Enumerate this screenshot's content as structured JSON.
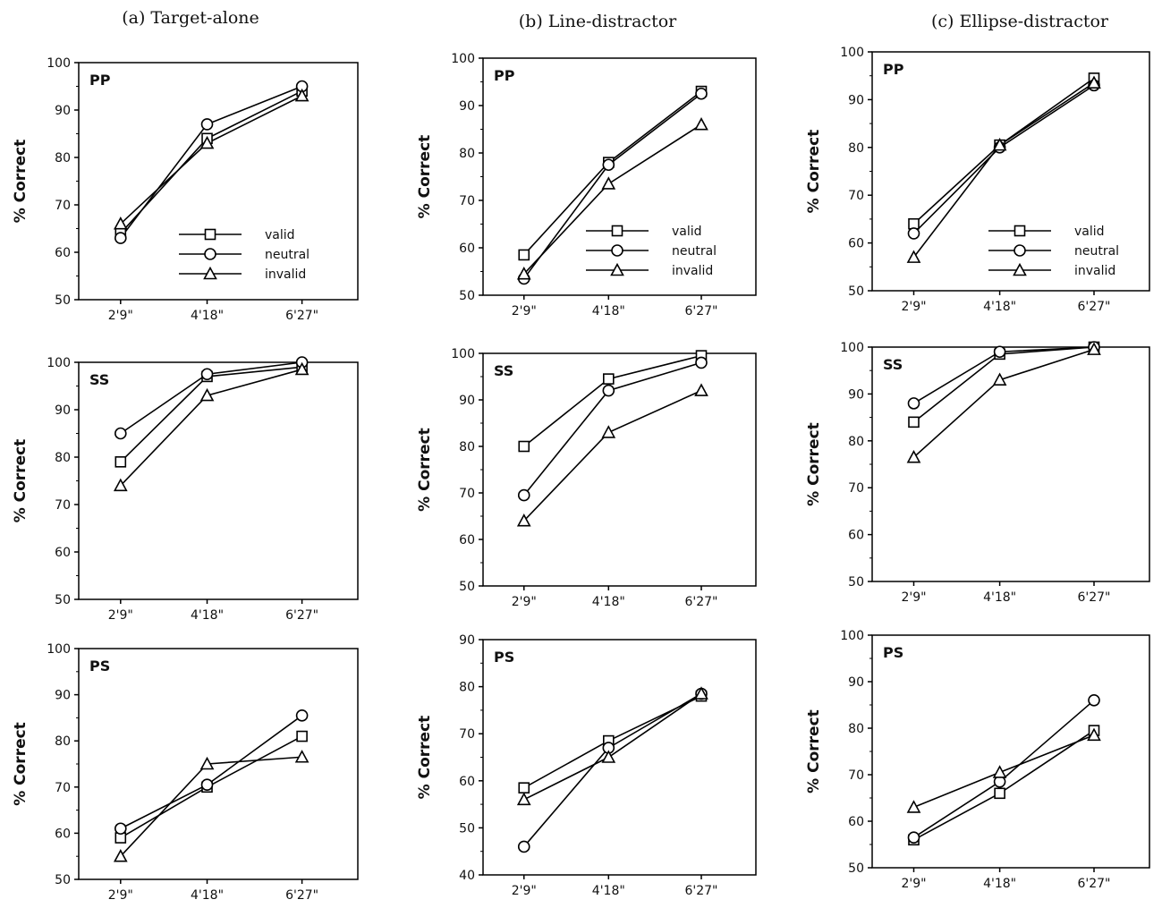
{
  "column_titles": [
    "(a) Target-alone",
    "(b) Line-distractor",
    "(c) Ellipse-distractor"
  ],
  "legend_labels": [
    "valid",
    "neutral",
    "invalid"
  ],
  "chart_data": [
    {
      "type": "line",
      "column": "(a) Target-alone",
      "panel": "PP",
      "ylabel": "% Correct",
      "ylim": [
        50,
        100
      ],
      "yticks": [
        50,
        60,
        70,
        80,
        90,
        100
      ],
      "categories": [
        "2'9\"",
        "4'18\"",
        "6'27\""
      ],
      "legend": true,
      "series": [
        {
          "name": "valid",
          "marker": "square",
          "values": [
            64,
            84,
            94
          ]
        },
        {
          "name": "neutral",
          "marker": "circle",
          "values": [
            63,
            87,
            95
          ]
        },
        {
          "name": "invalid",
          "marker": "triangle",
          "values": [
            66,
            83,
            93
          ]
        }
      ]
    },
    {
      "type": "line",
      "column": "(a) Target-alone",
      "panel": "SS",
      "ylabel": "% Correct",
      "ylim": [
        50,
        100
      ],
      "yticks": [
        50,
        60,
        70,
        80,
        90,
        100
      ],
      "categories": [
        "2'9\"",
        "4'18\"",
        "6'27\""
      ],
      "legend": false,
      "series": [
        {
          "name": "valid",
          "marker": "square",
          "values": [
            79,
            97,
            99
          ]
        },
        {
          "name": "neutral",
          "marker": "circle",
          "values": [
            85,
            97.5,
            100
          ]
        },
        {
          "name": "invalid",
          "marker": "triangle",
          "values": [
            74,
            93,
            98.5
          ]
        }
      ]
    },
    {
      "type": "line",
      "column": "(a) Target-alone",
      "panel": "PS",
      "ylabel": "% Correct",
      "ylim": [
        50,
        100
      ],
      "yticks": [
        50,
        60,
        70,
        80,
        90,
        100
      ],
      "categories": [
        "2'9\"",
        "4'18\"",
        "6'27\""
      ],
      "legend": false,
      "series": [
        {
          "name": "valid",
          "marker": "square",
          "values": [
            59,
            70,
            81
          ]
        },
        {
          "name": "neutral",
          "marker": "circle",
          "values": [
            61,
            70.5,
            85.5
          ]
        },
        {
          "name": "invalid",
          "marker": "triangle",
          "values": [
            55,
            75,
            76.5
          ]
        }
      ]
    },
    {
      "type": "line",
      "column": "(b) Line-distractor",
      "panel": "PP",
      "ylabel": "% Correct",
      "ylim": [
        50,
        100
      ],
      "yticks": [
        50,
        60,
        70,
        80,
        90,
        100
      ],
      "categories": [
        "2'9\"",
        "4'18\"",
        "6'27\""
      ],
      "legend": true,
      "series": [
        {
          "name": "valid",
          "marker": "square",
          "values": [
            58.5,
            78,
            93
          ]
        },
        {
          "name": "neutral",
          "marker": "circle",
          "values": [
            53.5,
            77.5,
            92.5
          ]
        },
        {
          "name": "invalid",
          "marker": "triangle",
          "values": [
            54.5,
            73.5,
            86
          ]
        }
      ]
    },
    {
      "type": "line",
      "column": "(b) Line-distractor",
      "panel": "SS",
      "ylabel": "% Correct",
      "ylim": [
        50,
        100
      ],
      "yticks": [
        50,
        60,
        70,
        80,
        90,
        100
      ],
      "categories": [
        "2'9\"",
        "4'18\"",
        "6'27\""
      ],
      "legend": false,
      "series": [
        {
          "name": "valid",
          "marker": "square",
          "values": [
            80,
            94.5,
            99.5
          ]
        },
        {
          "name": "neutral",
          "marker": "circle",
          "values": [
            69.5,
            92,
            98
          ]
        },
        {
          "name": "invalid",
          "marker": "triangle",
          "values": [
            64,
            83,
            92
          ]
        }
      ]
    },
    {
      "type": "line",
      "column": "(b) Line-distractor",
      "panel": "PS",
      "ylabel": "% Correct",
      "ylim": [
        40,
        90
      ],
      "yticks": [
        40,
        50,
        60,
        70,
        80,
        90
      ],
      "categories": [
        "2'9\"",
        "4'18\"",
        "6'27\""
      ],
      "legend": false,
      "series": [
        {
          "name": "valid",
          "marker": "square",
          "values": [
            58.5,
            68.5,
            78
          ]
        },
        {
          "name": "neutral",
          "marker": "circle",
          "values": [
            46,
            67,
            78.5
          ]
        },
        {
          "name": "invalid",
          "marker": "triangle",
          "values": [
            56,
            65,
            78.5
          ]
        }
      ]
    },
    {
      "type": "line",
      "column": "(c) Ellipse-distractor",
      "panel": "PP",
      "ylabel": "% Correct",
      "ylim": [
        50,
        100
      ],
      "yticks": [
        50,
        60,
        70,
        80,
        90,
        100
      ],
      "categories": [
        "2'9\"",
        "4'18\"",
        "6'27\""
      ],
      "legend": true,
      "series": [
        {
          "name": "valid",
          "marker": "square",
          "values": [
            64,
            80.5,
            94.5
          ]
        },
        {
          "name": "neutral",
          "marker": "circle",
          "values": [
            62,
            80,
            93
          ]
        },
        {
          "name": "invalid",
          "marker": "triangle",
          "values": [
            57,
            80.5,
            93.5
          ]
        }
      ]
    },
    {
      "type": "line",
      "column": "(c) Ellipse-distractor",
      "panel": "SS",
      "ylabel": "% Correct",
      "ylim": [
        50,
        100
      ],
      "yticks": [
        50,
        60,
        70,
        80,
        90,
        100
      ],
      "categories": [
        "2'9\"",
        "4'18\"",
        "6'27\""
      ],
      "legend": false,
      "series": [
        {
          "name": "valid",
          "marker": "square",
          "values": [
            84,
            98.5,
            100
          ]
        },
        {
          "name": "neutral",
          "marker": "circle",
          "values": [
            88,
            99,
            100
          ]
        },
        {
          "name": "invalid",
          "marker": "triangle",
          "values": [
            76.5,
            93,
            99.5
          ]
        }
      ]
    },
    {
      "type": "line",
      "column": "(c) Ellipse-distractor",
      "panel": "PS",
      "ylabel": "% Correct",
      "ylim": [
        50,
        100
      ],
      "yticks": [
        50,
        60,
        70,
        80,
        90,
        100
      ],
      "categories": [
        "2'9\"",
        "4'18\"",
        "6'27\""
      ],
      "legend": false,
      "series": [
        {
          "name": "valid",
          "marker": "square",
          "values": [
            56,
            66,
            79.5
          ]
        },
        {
          "name": "neutral",
          "marker": "circle",
          "values": [
            56.5,
            68.5,
            86
          ]
        },
        {
          "name": "invalid",
          "marker": "triangle",
          "values": [
            63,
            70.5,
            78.5
          ]
        }
      ]
    }
  ]
}
